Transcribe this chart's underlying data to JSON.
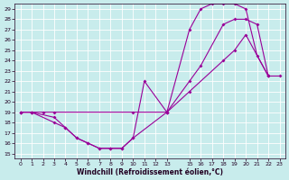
{
  "xlabel": "Windchill (Refroidissement éolien,°C)",
  "bg_color": "#c8ecec",
  "line_color": "#990099",
  "grid_color": "#ffffff",
  "xlim": [
    -0.5,
    23.5
  ],
  "ylim": [
    14.5,
    29.5
  ],
  "xticks": [
    0,
    1,
    2,
    3,
    4,
    5,
    6,
    7,
    8,
    9,
    10,
    11,
    12,
    13,
    15,
    16,
    17,
    18,
    19,
    20,
    21,
    22,
    23
  ],
  "yticks": [
    15,
    16,
    17,
    18,
    19,
    20,
    21,
    22,
    23,
    24,
    25,
    26,
    27,
    28,
    29
  ],
  "line1_x": [
    0,
    1,
    2,
    3,
    10,
    13,
    15,
    18,
    19,
    20,
    22,
    23
  ],
  "line1_y": [
    19,
    19,
    19,
    19,
    19,
    19,
    21,
    24,
    25,
    26.5,
    22.5,
    22.5
  ],
  "line2_x": [
    0,
    1,
    3,
    4,
    5,
    6,
    7,
    8,
    9,
    10,
    13,
    15,
    16,
    18,
    19,
    20,
    21,
    22
  ],
  "line2_y": [
    19,
    19,
    18,
    17.5,
    16.5,
    16,
    15.5,
    15.5,
    15.5,
    16.5,
    19,
    22,
    23.5,
    27.5,
    28,
    28,
    27.5,
    22.5
  ],
  "line3_x": [
    0,
    1,
    3,
    4,
    5,
    6,
    7,
    8,
    9,
    10,
    11,
    13,
    15,
    16,
    17,
    18,
    19,
    20,
    21,
    22
  ],
  "line3_y": [
    19,
    19,
    18.5,
    17.5,
    16.5,
    16,
    15.5,
    15.5,
    15.5,
    16.5,
    22,
    19,
    27,
    29,
    29.5,
    29.5,
    29.5,
    29,
    24.5,
    22.5
  ]
}
